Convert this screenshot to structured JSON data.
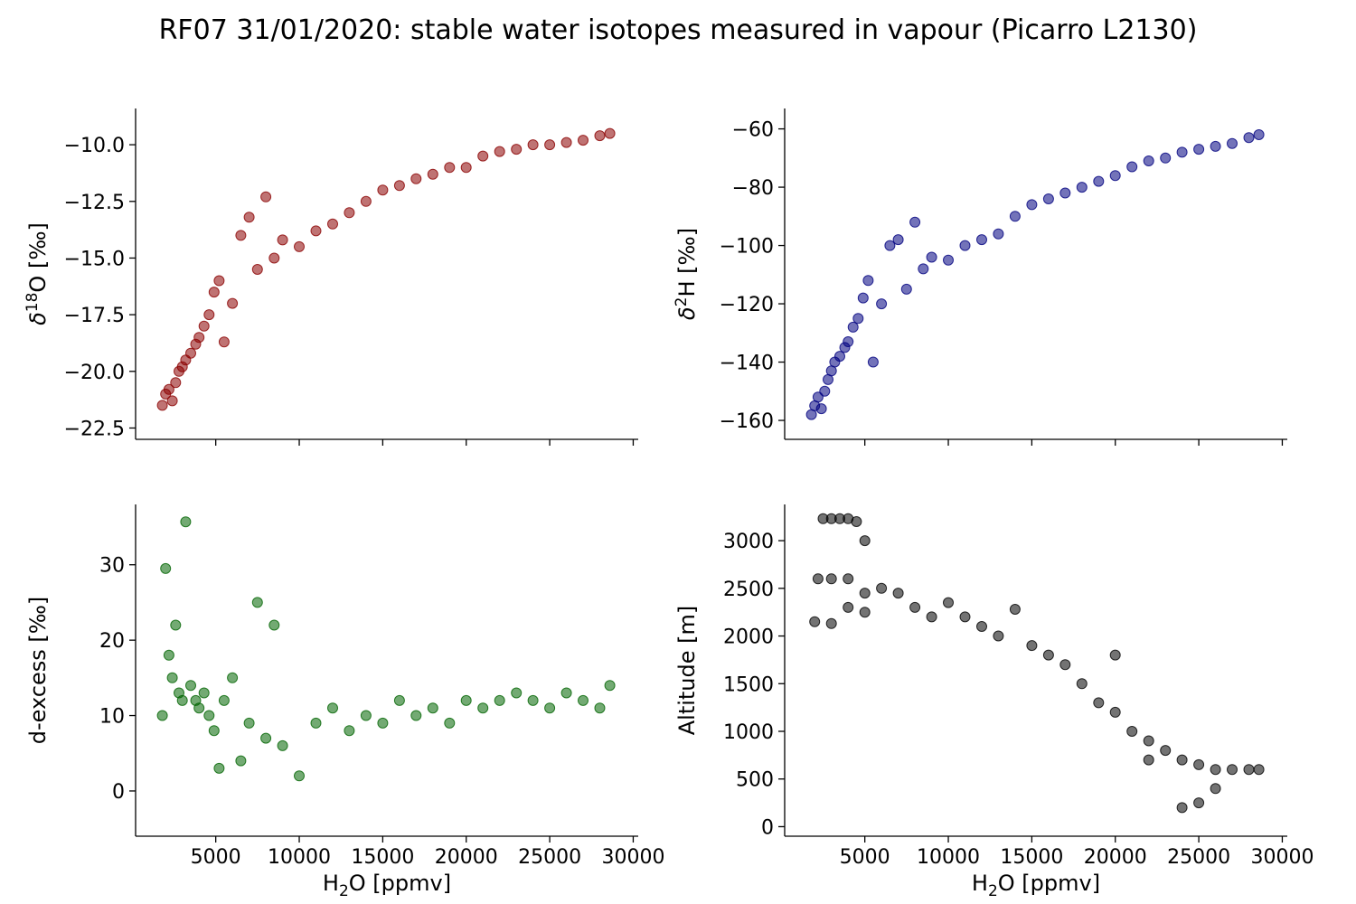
{
  "figure": {
    "title": "RF07 31/01/2020: stable water isotopes measured in vapour (Picarro L2130)"
  },
  "chart_data": [
    {
      "id": "d18o",
      "type": "scatter",
      "color": "#8b0000",
      "xlabel": "H2O [ppmv]",
      "ylabel_prefix": "δ",
      "ylabel_sup": "18",
      "ylabel_suffix": "O [‰]",
      "xlim": [
        200,
        30300
      ],
      "ylim": [
        -23.0,
        -8.4
      ],
      "xticks": [
        5000,
        10000,
        15000,
        20000,
        25000,
        30000
      ],
      "yticks": [
        -10.0,
        -12.5,
        -15.0,
        -17.5,
        -20.0,
        -22.5
      ],
      "ytick_labels": [
        "−10.0",
        "−12.5",
        "−15.0",
        "−17.5",
        "−20.0",
        "−22.5"
      ],
      "show_xticklabels": false,
      "x": [
        1800,
        2000,
        2200,
        2400,
        2600,
        2800,
        3000,
        3200,
        3500,
        3800,
        4000,
        4300,
        4600,
        4900,
        5200,
        5500,
        6000,
        6500,
        7000,
        7500,
        8000,
        8500,
        9000,
        10000,
        11000,
        12000,
        13000,
        14000,
        15000,
        16000,
        17000,
        18000,
        19000,
        20000,
        21000,
        22000,
        23000,
        24000,
        25000,
        26000,
        27000,
        28000,
        28600
      ],
      "y": [
        -21.5,
        -21.0,
        -20.8,
        -21.3,
        -20.5,
        -20.0,
        -19.8,
        -19.5,
        -19.2,
        -18.8,
        -18.5,
        -18.0,
        -17.5,
        -16.5,
        -16.0,
        -18.7,
        -17.0,
        -14.0,
        -13.2,
        -15.5,
        -12.3,
        -15.0,
        -14.2,
        -14.5,
        -13.8,
        -13.5,
        -13.0,
        -12.5,
        -12.0,
        -11.8,
        -11.5,
        -11.3,
        -11.0,
        -11.0,
        -10.5,
        -10.3,
        -10.2,
        -10.0,
        -10.0,
        -9.9,
        -9.8,
        -9.6,
        -9.5
      ]
    },
    {
      "id": "d2h",
      "type": "scatter",
      "color": "#00007f",
      "xlabel": "H2O [ppmv]",
      "ylabel_prefix": "δ",
      "ylabel_sup": "2",
      "ylabel_suffix": "H [‰]",
      "xlim": [
        200,
        30300
      ],
      "ylim": [
        -166.5,
        -53
      ],
      "xticks": [
        5000,
        10000,
        15000,
        20000,
        25000,
        30000
      ],
      "yticks": [
        -60,
        -80,
        -100,
        -120,
        -140,
        -160
      ],
      "ytick_labels": [
        "−60",
        "−80",
        "−100",
        "−120",
        "−140",
        "−160"
      ],
      "show_xticklabels": false,
      "x": [
        1800,
        2000,
        2200,
        2400,
        2600,
        2800,
        3000,
        3200,
        3500,
        3800,
        4000,
        4300,
        4600,
        4900,
        5200,
        5500,
        6000,
        6500,
        7000,
        7500,
        8000,
        8500,
        9000,
        10000,
        11000,
        12000,
        13000,
        14000,
        15000,
        16000,
        17000,
        18000,
        19000,
        20000,
        21000,
        22000,
        23000,
        24000,
        25000,
        26000,
        27000,
        28000,
        28600
      ],
      "y": [
        -158,
        -155,
        -152,
        -156,
        -150,
        -146,
        -143,
        -140,
        -138,
        -135,
        -133,
        -128,
        -125,
        -118,
        -112,
        -140,
        -120,
        -100,
        -98,
        -115,
        -92,
        -108,
        -104,
        -105,
        -100,
        -98,
        -96,
        -90,
        -86,
        -84,
        -82,
        -80,
        -78,
        -76,
        -73,
        -71,
        -70,
        -68,
        -67,
        -66,
        -65,
        -63,
        -62
      ]
    },
    {
      "id": "dexcess",
      "type": "scatter",
      "color": "#006400",
      "xlabel_prefix": "H",
      "xlabel_sub": "2",
      "xlabel_suffix": "O [ppmv]",
      "ylabel": "d-excess [‰]",
      "xlim": [
        200,
        30300
      ],
      "ylim": [
        -6,
        38
      ],
      "xticks": [
        5000,
        10000,
        15000,
        20000,
        25000,
        30000
      ],
      "yticks": [
        0,
        10,
        20,
        30
      ],
      "ytick_labels": [
        "0",
        "10",
        "20",
        "30"
      ],
      "show_xticklabels": true,
      "x": [
        1800,
        2000,
        2200,
        2400,
        2600,
        2800,
        3000,
        3200,
        3500,
        3800,
        4000,
        4300,
        4600,
        4900,
        5200,
        5500,
        6000,
        6500,
        7000,
        7500,
        8000,
        8500,
        9000,
        10000,
        11000,
        12000,
        13000,
        14000,
        15000,
        16000,
        17000,
        18000,
        19000,
        20000,
        21000,
        22000,
        23000,
        24000,
        25000,
        26000,
        27000,
        28000,
        28600
      ],
      "y": [
        10,
        29.5,
        18,
        15,
        22,
        13,
        12,
        35.7,
        14,
        12,
        11,
        13,
        10,
        8,
        3,
        12,
        15,
        4,
        9,
        25,
        7,
        22,
        6,
        2,
        9,
        11,
        8,
        10,
        9,
        12,
        10,
        11,
        9,
        12,
        11,
        12,
        13,
        12,
        11,
        13,
        12,
        11,
        14
      ]
    },
    {
      "id": "altitude",
      "type": "scatter",
      "color": "#000000",
      "xlabel_prefix": "H",
      "xlabel_sub": "2",
      "xlabel_suffix": "O [ppmv]",
      "ylabel": "Altitude [m]",
      "xlim": [
        200,
        30300
      ],
      "ylim": [
        -100,
        3380
      ],
      "xticks": [
        5000,
        10000,
        15000,
        20000,
        25000,
        30000
      ],
      "yticks": [
        0,
        500,
        1000,
        1500,
        2000,
        2500,
        3000
      ],
      "ytick_labels": [
        "0",
        "500",
        "1000",
        "1500",
        "2000",
        "2500",
        "3000"
      ],
      "show_xticklabels": true,
      "x": [
        2500,
        3000,
        3500,
        4000,
        4500,
        5000,
        2200,
        3000,
        4000,
        5000,
        2000,
        3000,
        4000,
        5000,
        6000,
        7000,
        8000,
        9000,
        10000,
        11000,
        12000,
        13000,
        14000,
        15000,
        16000,
        17000,
        18000,
        19000,
        20000,
        21000,
        22000,
        23000,
        24000,
        25000,
        26000,
        27000,
        28000,
        28600,
        26000,
        25000,
        24000,
        22000,
        20000
      ],
      "y": [
        3230,
        3230,
        3230,
        3230,
        3200,
        3000,
        2600,
        2600,
        2600,
        2450,
        2150,
        2130,
        2300,
        2250,
        2500,
        2450,
        2300,
        2200,
        2350,
        2200,
        2100,
        2000,
        2280,
        1900,
        1800,
        1700,
        1500,
        1300,
        1200,
        1000,
        900,
        800,
        700,
        650,
        600,
        600,
        600,
        600,
        400,
        250,
        200,
        700,
        1800
      ]
    }
  ]
}
